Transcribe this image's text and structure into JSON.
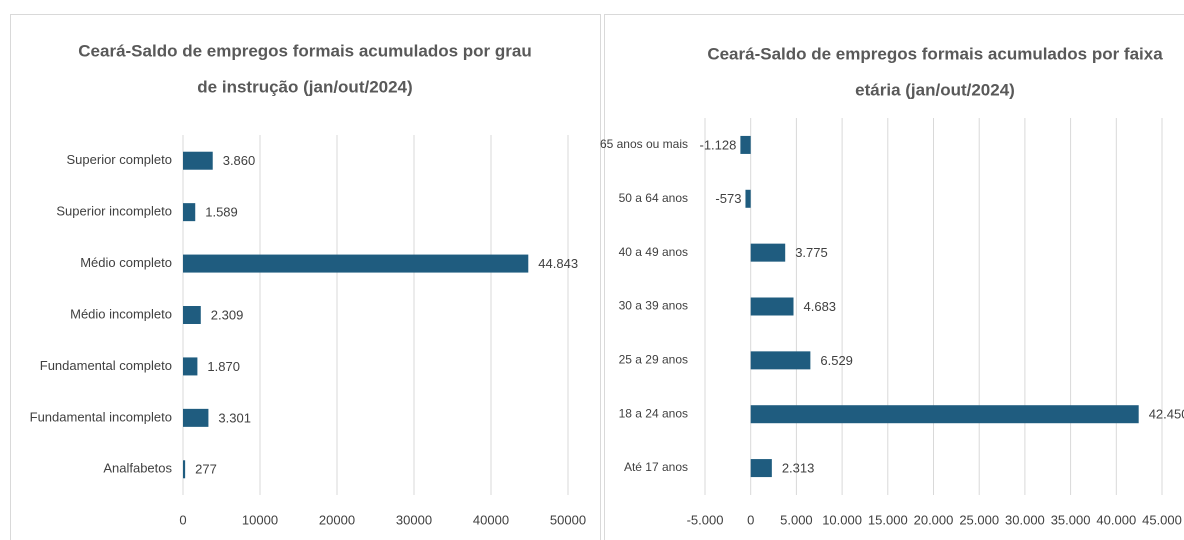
{
  "chart_data": [
    {
      "type": "bar",
      "orientation": "horizontal",
      "title": [
        "Ceará-Saldo de empregos formais acumulados por grau",
        "de instrução (jan/out/2024)"
      ],
      "categories": [
        "Superior completo",
        "Superior incompleto",
        "Médio completo",
        "Médio incompleto",
        "Fundamental completo",
        "Fundamental incompleto",
        "Analfabetos"
      ],
      "values": [
        3860,
        1589,
        44843,
        2309,
        1870,
        3301,
        277
      ],
      "value_labels": [
        "3.860",
        "1.589",
        "44.843",
        "2.309",
        "1.870",
        "3.301",
        "277"
      ],
      "color": "#1f5c7f",
      "xlim": [
        0,
        50000
      ],
      "xticks": [
        0,
        10000,
        20000,
        30000,
        40000,
        50000
      ],
      "grid": true
    },
    {
      "type": "bar",
      "orientation": "horizontal",
      "title": [
        "Ceará-Saldo de empregos formais acumulados por faixa",
        "etária (jan/out/2024)"
      ],
      "categories": [
        "65 anos ou mais",
        "50 a 64 anos",
        "40 a 49 anos",
        "30 a 39 anos",
        "25 a 29 anos",
        "18 a 24 anos",
        "Até 17 anos"
      ],
      "values": [
        -1128,
        -573,
        3775,
        4683,
        6529,
        42450,
        2313
      ],
      "value_labels": [
        "-1.128",
        "-573",
        "3.775",
        "4.683",
        "6.529",
        "42.450",
        "2.313"
      ],
      "color": "#1f5c7f",
      "xlim": [
        -5000,
        45000
      ],
      "xticks": [
        {
          "value": -5000,
          "label": "-5.000"
        },
        0,
        {
          "value": 5000,
          "label": "5.000"
        },
        {
          "value": 10000,
          "label": "10.000"
        },
        {
          "value": 15000,
          "label": "15.000"
        },
        {
          "value": 20000,
          "label": "20.000"
        },
        {
          "value": 25000,
          "label": "25.000"
        },
        {
          "value": 30000,
          "label": "30.000"
        },
        {
          "value": 35000,
          "label": "35.000"
        },
        {
          "value": 40000,
          "label": "40.000"
        },
        {
          "value": 45000,
          "label": "45.000"
        }
      ],
      "grid": true
    }
  ]
}
